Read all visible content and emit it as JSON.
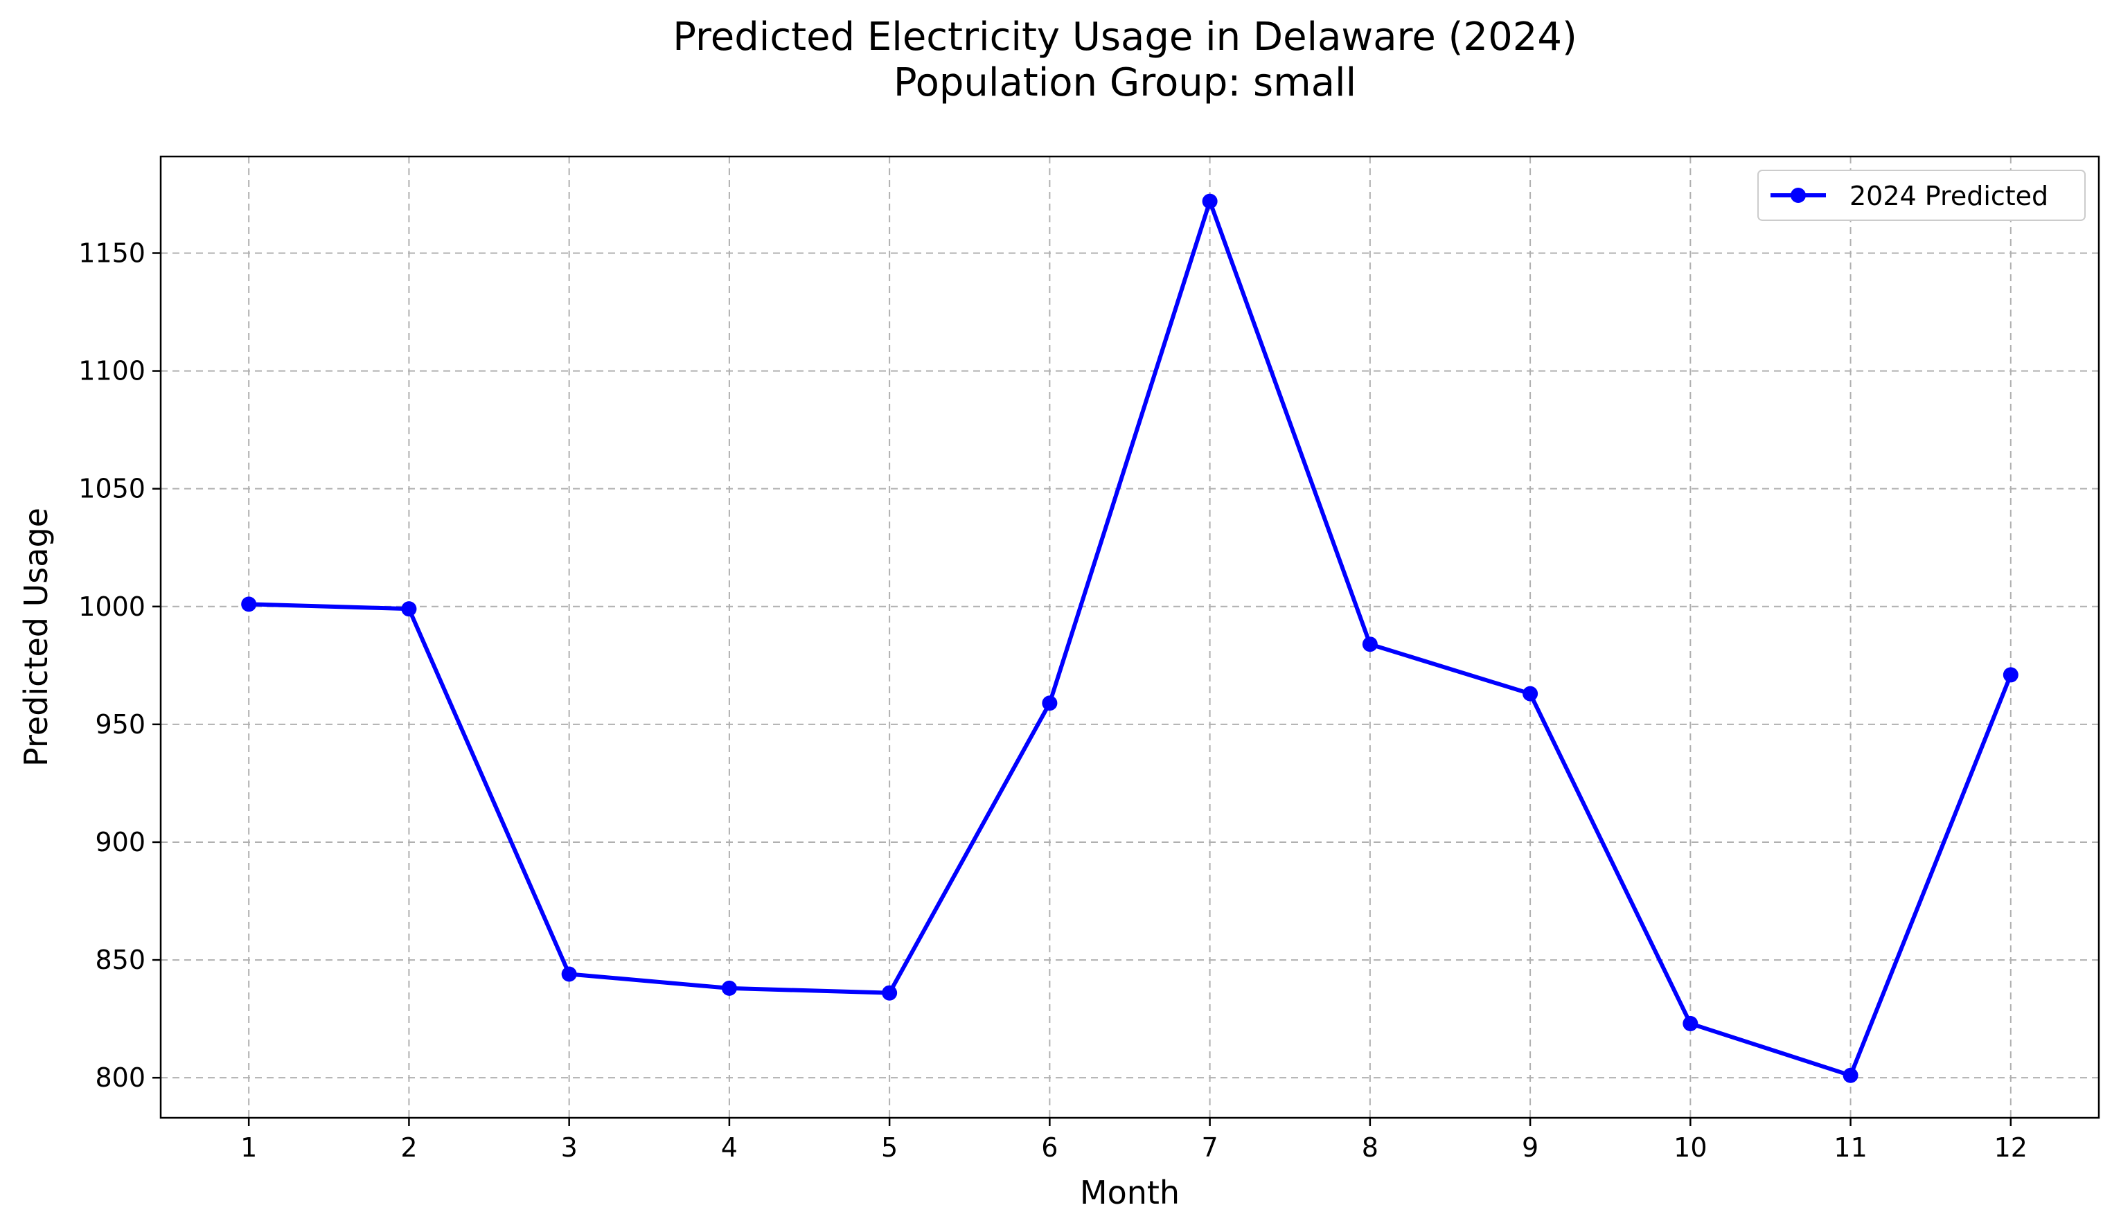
{
  "chart_data": {
    "type": "line",
    "title": "Predicted Electricity Usage in Delaware (2024)",
    "subtitle": "Population Group: small",
    "xlabel": "Month",
    "ylabel": "Predicted Usage",
    "x": [
      1,
      2,
      3,
      4,
      5,
      6,
      7,
      8,
      9,
      10,
      11,
      12
    ],
    "x_ticks": [
      "1",
      "2",
      "3",
      "4",
      "5",
      "6",
      "7",
      "8",
      "9",
      "10",
      "11",
      "12"
    ],
    "xlim": [
      0.45,
      12.55
    ],
    "y_ticks": [
      "800",
      "850",
      "900",
      "950",
      "1000",
      "1050",
      "1100",
      "1150"
    ],
    "ylim": [
      783,
      1191
    ],
    "grid": true,
    "legend_position": "top-right",
    "series": [
      {
        "name": "2024 Predicted",
        "color": "#0000ff",
        "marker": "circle",
        "values": [
          1001,
          999,
          844,
          838,
          836,
          959,
          1172,
          984,
          963,
          823,
          801,
          971
        ]
      }
    ]
  }
}
